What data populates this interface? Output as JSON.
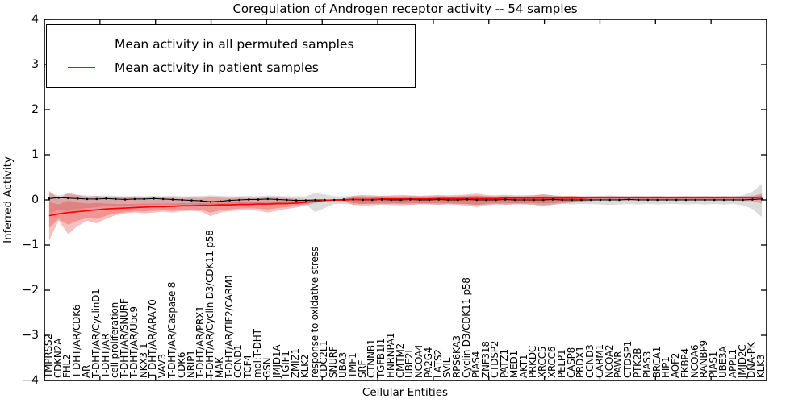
{
  "chart_data": {
    "type": "line",
    "title": "Coregulation of Androgen receptor activity -- 54 samples",
    "xlabel": "Cellular Entities",
    "ylabel": "Inferred Activity",
    "ylim": [
      -4,
      4
    ],
    "yticks": [
      4,
      3,
      2,
      1,
      0,
      -1,
      -2,
      -3,
      -4
    ],
    "grid": false,
    "legend_position": "upper left",
    "n_samples": "54",
    "categories": [
      "TMPRSS2",
      "CDKN2A",
      "FHL2",
      "T-DHT/AR/CDK6",
      "AR",
      "T-DHT/AR/CyclinD1",
      "T-DHT/AR",
      "cell proliferation",
      "T-DHT/AR/SNURF",
      "T-DHT/AR/Ubc9",
      "NKX3-1",
      "T-DHT/AR/ARA70",
      "VAV3",
      "T-DHT/AR/Caspase 8",
      "CDK6",
      "NRIP1",
      "T-DHT/AR/PRX1",
      "T-DHT/AR/Cyclin D3/CDK11 p58",
      "MAK",
      "T-DHT/AR/TIF2/CARM1",
      "CCND1",
      "TCF4",
      "mol:T-DHT",
      "GSN",
      "JMJD1A",
      "TGIF1",
      "ZMIZ1",
      "KLK2",
      "response to oxidative stress",
      "CDC2L1",
      "SNURF",
      "UBA3",
      "TMF1",
      "SRF",
      "CTNNB1",
      "TGFB1I1",
      "HNRNPA1",
      "CMTM2",
      "UBE2I",
      "NCOA4",
      "PA2G4",
      "LATS2",
      "SVIL",
      "RPS6KA3",
      "Cyclin D3/CDK11 p58",
      "PIAS4",
      "ZNF318",
      "CTDSP2",
      "PATZ1",
      "MED1",
      "AKT1",
      "PRKDC",
      "XRCC5",
      "XRCC6",
      "PELP1",
      "CASP8",
      "PRDX1",
      "CCND3",
      "CARM1",
      "NCOA2",
      "PAWR",
      "CTDSP1",
      "PTK2B",
      "PIAS3",
      "BRCA1",
      "HIP1",
      "AOF2",
      "FKBP4",
      "NCOA6",
      "RANBP9",
      "PIAS1",
      "UBE3A",
      "APPL1",
      "JMJD2C",
      "DNA-PK",
      "KLK3"
    ],
    "series": [
      {
        "name": "Mean activity in all permuted samples",
        "color": "#000000",
        "marker": "dot",
        "values": [
          0.03,
          0.05,
          0.04,
          0.03,
          0.02,
          0.02,
          0.03,
          0.02,
          0.01,
          0.02,
          0.02,
          0.03,
          0.02,
          0.01,
          0.0,
          -0.01,
          -0.02,
          -0.04,
          -0.03,
          -0.01,
          0.0,
          0.01,
          0.01,
          0.02,
          0.01,
          0.0,
          -0.01,
          -0.01,
          0.0,
          0.0,
          0.0,
          0.01,
          0.01,
          0.0,
          0.0,
          0.01,
          0.0,
          0.0,
          0.01,
          0.0,
          0.0,
          0.01,
          0.0,
          0.0,
          0.01,
          0.0,
          0.0,
          0.0,
          0.01,
          0.0,
          0.0,
          0.0,
          0.0,
          0.01,
          0.0,
          0.0,
          0.0,
          0.0,
          0.0,
          0.0,
          0.0,
          0.01,
          0.0,
          0.0,
          0.0,
          0.0,
          0.0,
          0.0,
          0.0,
          0.0,
          0.0,
          0.0,
          0.0,
          0.0,
          0.01,
          0.02
        ]
      },
      {
        "name": "Mean activity in patient samples",
        "color": "#ff0000",
        "marker": "none",
        "values": [
          -0.35,
          -0.31,
          -0.28,
          -0.26,
          -0.24,
          -0.22,
          -0.2,
          -0.19,
          -0.18,
          -0.17,
          -0.16,
          -0.15,
          -0.15,
          -0.14,
          -0.13,
          -0.13,
          -0.12,
          -0.12,
          -0.11,
          -0.11,
          -0.1,
          -0.1,
          -0.09,
          -0.09,
          -0.08,
          -0.08,
          -0.07,
          -0.05,
          -0.03,
          -0.01,
          0.0,
          0.0,
          0.01,
          0.01,
          0.01,
          0.02,
          0.02,
          0.02,
          0.02,
          0.02,
          0.02,
          0.03,
          0.03,
          0.03,
          0.03,
          0.03,
          0.03,
          0.03,
          0.04,
          0.04,
          0.04,
          0.04,
          0.04,
          0.04,
          0.04,
          0.04,
          0.04,
          0.05,
          0.05,
          0.05,
          0.05,
          0.05,
          0.05,
          0.05,
          0.05,
          0.05,
          0.05,
          0.05,
          0.05,
          0.05,
          0.05,
          0.05,
          0.05,
          0.05,
          0.05,
          0.06
        ]
      }
    ],
    "bands": [
      {
        "name": "permuted-samples-spread",
        "color": "rgba(125,125,125,0.27)",
        "upper": [
          0.16,
          0.1,
          0.13,
          0.11,
          0.1,
          0.09,
          0.1,
          0.09,
          0.08,
          0.09,
          0.08,
          0.09,
          0.08,
          0.09,
          0.08,
          0.08,
          0.09,
          0.1,
          0.09,
          0.08,
          0.08,
          0.09,
          0.08,
          0.1,
          0.09,
          0.08,
          0.08,
          0.08,
          0.15,
          0.12,
          0.08,
          0.08,
          0.09,
          0.08,
          0.08,
          0.09,
          0.08,
          0.08,
          0.09,
          0.08,
          0.08,
          0.09,
          0.08,
          0.08,
          0.09,
          0.1,
          0.09,
          0.08,
          0.09,
          0.08,
          0.08,
          0.09,
          0.13,
          0.1,
          0.08,
          0.09,
          0.08,
          0.08,
          0.09,
          0.1,
          0.09,
          0.08,
          0.09,
          0.08,
          0.09,
          0.08,
          0.08,
          0.09,
          0.08,
          0.09,
          0.08,
          0.09,
          0.08,
          0.1,
          0.18,
          0.36
        ],
        "lower": [
          -0.3,
          -0.22,
          -0.25,
          -0.2,
          -0.18,
          -0.16,
          -0.14,
          -0.13,
          -0.12,
          -0.12,
          -0.11,
          -0.11,
          -0.1,
          -0.11,
          -0.1,
          -0.1,
          -0.11,
          -0.12,
          -0.11,
          -0.1,
          -0.1,
          -0.1,
          -0.1,
          -0.11,
          -0.1,
          -0.09,
          -0.09,
          -0.1,
          -0.27,
          -0.18,
          -0.09,
          -0.09,
          -0.1,
          -0.09,
          -0.09,
          -0.1,
          -0.09,
          -0.09,
          -0.1,
          -0.09,
          -0.09,
          -0.1,
          -0.09,
          -0.09,
          -0.1,
          -0.11,
          -0.1,
          -0.09,
          -0.1,
          -0.09,
          -0.09,
          -0.1,
          -0.15,
          -0.11,
          -0.09,
          -0.1,
          -0.09,
          -0.09,
          -0.1,
          -0.11,
          -0.1,
          -0.09,
          -0.1,
          -0.09,
          -0.1,
          -0.09,
          -0.09,
          -0.1,
          -0.09,
          -0.1,
          -0.09,
          -0.1,
          -0.09,
          -0.12,
          -0.2,
          -0.38
        ]
      },
      {
        "name": "patient-samples-spread-outer",
        "color": "rgba(225,45,45,0.30)",
        "upper": [
          0.2,
          0.02,
          0.16,
          0.11,
          0.07,
          0.09,
          0.06,
          0.05,
          0.06,
          0.05,
          0.05,
          0.06,
          0.05,
          0.05,
          0.04,
          0.05,
          0.04,
          0.06,
          0.05,
          0.04,
          0.05,
          0.04,
          0.04,
          0.06,
          0.05,
          0.04,
          0.03,
          0.02,
          0.01,
          0.01,
          0.01,
          0.02,
          0.09,
          0.11,
          0.1,
          0.09,
          0.1,
          0.11,
          0.1,
          0.09,
          0.1,
          0.11,
          0.1,
          0.11,
          0.12,
          0.14,
          0.11,
          0.1,
          0.11,
          0.1,
          0.1,
          0.11,
          0.12,
          0.1,
          0.09,
          0.09,
          0.08,
          0.08,
          0.08,
          0.08,
          0.08,
          0.08,
          0.08,
          0.08,
          0.08,
          0.08,
          0.08,
          0.08,
          0.08,
          0.08,
          0.08,
          0.08,
          0.08,
          0.08,
          0.09,
          0.14
        ],
        "lower": [
          -0.9,
          -0.46,
          -0.76,
          -0.58,
          -0.46,
          -0.52,
          -0.42,
          -0.34,
          -0.3,
          -0.28,
          -0.3,
          -0.28,
          -0.26,
          -0.28,
          -0.25,
          -0.24,
          -0.26,
          -0.36,
          -0.28,
          -0.25,
          -0.23,
          -0.22,
          -0.24,
          -0.28,
          -0.24,
          -0.2,
          -0.17,
          -0.12,
          -0.07,
          -0.03,
          -0.02,
          -0.03,
          -0.11,
          -0.13,
          -0.12,
          -0.1,
          -0.11,
          -0.12,
          -0.11,
          -0.1,
          -0.1,
          -0.11,
          -0.1,
          -0.11,
          -0.13,
          -0.16,
          -0.12,
          -0.1,
          -0.11,
          -0.1,
          -0.1,
          -0.11,
          -0.12,
          -0.1,
          -0.08,
          -0.06,
          -0.04,
          -0.02,
          -0.01,
          -0.01,
          -0.01,
          -0.01,
          -0.01,
          -0.01,
          -0.01,
          -0.01,
          -0.01,
          -0.01,
          -0.01,
          -0.01,
          -0.01,
          -0.01,
          -0.01,
          -0.02,
          -0.03,
          -0.08
        ]
      },
      {
        "name": "patient-samples-spread-inner",
        "color": "rgba(225,45,45,0.30)",
        "upper": [
          -0.05,
          -0.1,
          -0.02,
          -0.06,
          -0.08,
          -0.07,
          -0.08,
          -0.09,
          -0.09,
          -0.09,
          -0.08,
          -0.08,
          -0.08,
          -0.08,
          -0.07,
          -0.07,
          -0.07,
          -0.06,
          -0.06,
          -0.06,
          -0.05,
          -0.05,
          -0.04,
          -0.04,
          -0.03,
          -0.03,
          -0.02,
          -0.01,
          0.0,
          0.0,
          0.01,
          0.01,
          0.05,
          0.06,
          0.06,
          0.06,
          0.06,
          0.07,
          0.06,
          0.06,
          0.06,
          0.07,
          0.06,
          0.07,
          0.08,
          0.09,
          0.07,
          0.06,
          0.07,
          0.06,
          0.06,
          0.07,
          0.08,
          0.06,
          0.06,
          0.06,
          0.05,
          0.06,
          0.06,
          0.06,
          0.06,
          0.06,
          0.06,
          0.06,
          0.06,
          0.06,
          0.06,
          0.06,
          0.06,
          0.06,
          0.06,
          0.06,
          0.06,
          0.06,
          0.07,
          0.1
        ],
        "lower": [
          -0.62,
          -0.42,
          -0.55,
          -0.46,
          -0.4,
          -0.42,
          -0.35,
          -0.3,
          -0.27,
          -0.25,
          -0.26,
          -0.24,
          -0.23,
          -0.24,
          -0.22,
          -0.21,
          -0.22,
          -0.28,
          -0.23,
          -0.21,
          -0.19,
          -0.18,
          -0.19,
          -0.21,
          -0.18,
          -0.16,
          -0.13,
          -0.09,
          -0.05,
          -0.02,
          -0.01,
          -0.02,
          -0.07,
          -0.09,
          -0.08,
          -0.07,
          -0.07,
          -0.08,
          -0.07,
          -0.07,
          -0.07,
          -0.07,
          -0.07,
          -0.08,
          -0.09,
          -0.11,
          -0.08,
          -0.07,
          -0.07,
          -0.07,
          -0.07,
          -0.07,
          -0.08,
          -0.07,
          -0.05,
          -0.04,
          -0.02,
          -0.01,
          0.0,
          0.0,
          0.0,
          0.0,
          0.0,
          0.0,
          0.0,
          0.0,
          0.0,
          0.0,
          0.0,
          0.0,
          0.0,
          0.0,
          0.0,
          0.0,
          0.01,
          0.02
        ]
      }
    ]
  },
  "legend": {
    "items": [
      {
        "label": "Mean activity in all permuted samples",
        "color": "#000000"
      },
      {
        "label": "Mean activity in patient samples",
        "color": "#ff0000"
      }
    ]
  }
}
